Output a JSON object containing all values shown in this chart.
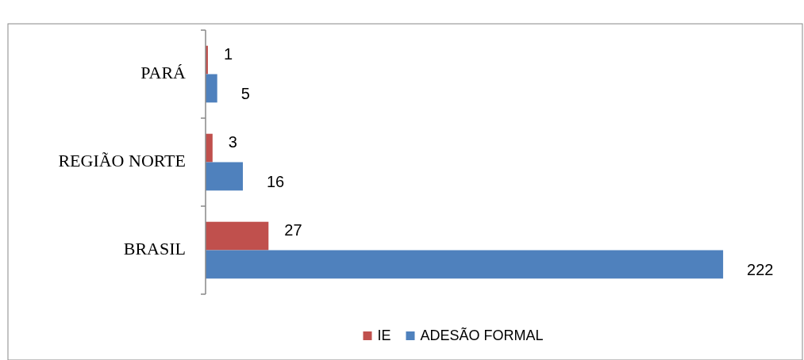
{
  "chart_data": {
    "type": "bar",
    "orientation": "horizontal",
    "categories": [
      "PARÁ",
      "REGIÃO NORTE",
      "BRASIL"
    ],
    "series": [
      {
        "name": "IE",
        "color": "#c0504d",
        "values": [
          1,
          3,
          27
        ]
      },
      {
        "name": "ADESÃO FORMAL",
        "color": "#4f81bd",
        "values": [
          5,
          16,
          222
        ]
      }
    ],
    "data_labels": true,
    "legend": "bottom",
    "grid": false
  }
}
